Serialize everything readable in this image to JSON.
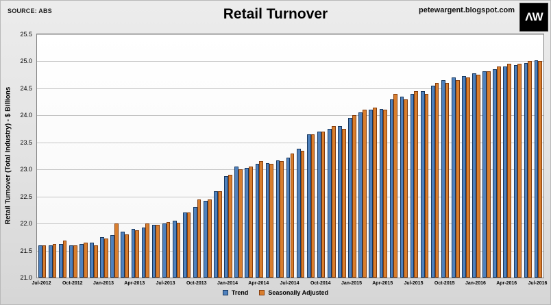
{
  "header": {
    "source": "SOURCE: ABS",
    "site": "petewargent.blogspot.com",
    "logo_text": "ΛW"
  },
  "chart_data": {
    "type": "bar",
    "title": "Retail Turnover",
    "xlabel": "",
    "ylabel": "Retail Turnover (Total Industry) - $ Billions",
    "ylim": [
      21.0,
      25.5
    ],
    "ytick_step": 0.5,
    "xtick_every": 3,
    "grid": true,
    "legend_position": "bottom",
    "categories": [
      "Jul-2012",
      "Aug-2012",
      "Sep-2012",
      "Oct-2012",
      "Nov-2012",
      "Dec-2012",
      "Jan-2013",
      "Feb-2013",
      "Mar-2013",
      "Apr-2013",
      "May-2013",
      "Jun-2013",
      "Jul-2013",
      "Aug-2013",
      "Sep-2013",
      "Oct-2013",
      "Nov-2013",
      "Dec-2013",
      "Jan-2014",
      "Feb-2014",
      "Mar-2014",
      "Apr-2014",
      "May-2014",
      "Jun-2014",
      "Jul-2014",
      "Aug-2014",
      "Sep-2014",
      "Oct-2014",
      "Nov-2014",
      "Dec-2014",
      "Jan-2015",
      "Feb-2015",
      "Mar-2015",
      "Apr-2015",
      "May-2015",
      "Jun-2015",
      "Jul-2015",
      "Aug-2015",
      "Sep-2015",
      "Oct-2015",
      "Nov-2015",
      "Dec-2015",
      "Jan-2016",
      "Feb-2016",
      "Mar-2016",
      "Apr-2016",
      "May-2016",
      "Jun-2016",
      "Jul-2016"
    ],
    "series": [
      {
        "name": "Trend",
        "color": "#4f81bd",
        "border": "#17375e",
        "values": [
          21.6,
          21.6,
          21.62,
          21.6,
          21.62,
          21.65,
          21.75,
          21.78,
          21.85,
          21.9,
          21.92,
          21.97,
          22.0,
          22.05,
          22.2,
          22.3,
          22.42,
          22.6,
          22.87,
          23.05,
          23.03,
          23.1,
          23.12,
          23.17,
          23.22,
          23.38,
          23.65,
          23.7,
          23.75,
          23.8,
          23.95,
          24.05,
          24.1,
          24.12,
          24.3,
          24.35,
          24.4,
          24.45,
          24.55,
          24.65,
          24.7,
          24.73,
          24.78,
          24.82,
          24.85,
          24.9,
          24.93,
          24.97,
          25.02
        ]
      },
      {
        "name": "Seasonally Adjusted",
        "color": "#d87e2e",
        "border": "#843c0c",
        "values": [
          21.6,
          21.62,
          21.68,
          21.6,
          21.65,
          21.6,
          21.72,
          22.0,
          21.8,
          21.87,
          22.0,
          21.97,
          22.03,
          22.02,
          22.2,
          22.45,
          22.45,
          22.6,
          22.9,
          23.0,
          23.05,
          23.15,
          23.1,
          23.15,
          23.3,
          23.35,
          23.65,
          23.7,
          23.8,
          23.75,
          24.0,
          24.1,
          24.15,
          24.1,
          24.4,
          24.3,
          24.45,
          24.4,
          24.6,
          24.6,
          24.65,
          24.7,
          24.75,
          24.82,
          24.9,
          24.95,
          24.95,
          25.0,
          25.0
        ]
      }
    ]
  }
}
